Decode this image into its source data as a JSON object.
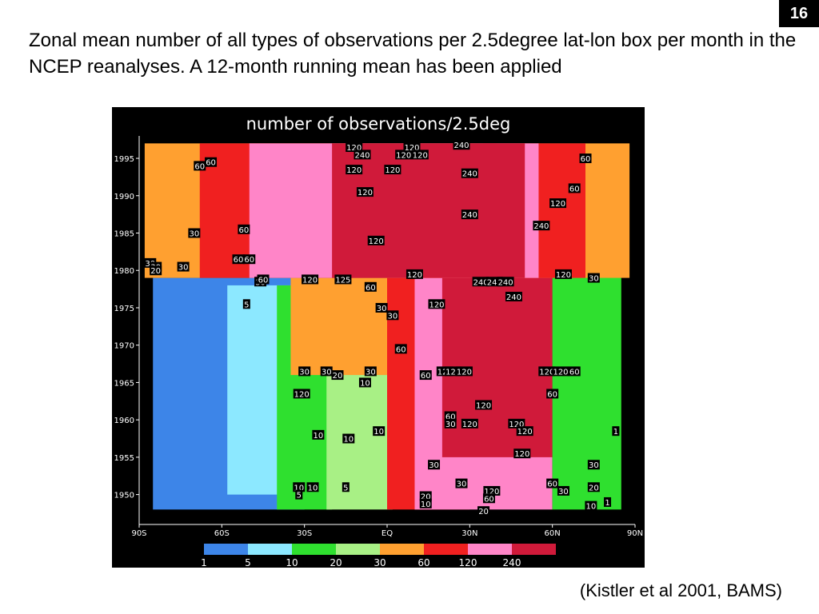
{
  "slide": {
    "number": "16",
    "title": "Zonal mean number of all types of observations per 2.5degree lat-lon box per month in the NCEP reanalyses. A 12-month running mean has been applied",
    "citation": "(Kistler et al 2001, BAMS)"
  },
  "chart_data": {
    "type": "heatmap",
    "title": "number of observations/2.5deg",
    "x_tick_labels": [
      "90S",
      "60S",
      "30S",
      "EQ",
      "30N",
      "60N",
      "90N"
    ],
    "x_tick_values": [
      -90,
      -60,
      -30,
      0,
      30,
      60,
      90
    ],
    "y_tick_labels": [
      "1950",
      "1955",
      "1960",
      "1965",
      "1970",
      "1975",
      "1980",
      "1985",
      "1990",
      "1995"
    ],
    "y_tick_values": [
      1950,
      1955,
      1960,
      1965,
      1970,
      1975,
      1980,
      1985,
      1990,
      1995
    ],
    "xlim": [
      -90,
      90
    ],
    "ylim": [
      1946,
      1998
    ],
    "colorbar": {
      "labels": [
        "1",
        "5",
        "10",
        "20",
        "30",
        "60",
        "120",
        "240"
      ],
      "levels": [
        1,
        5,
        10,
        20,
        30,
        60,
        120,
        240
      ],
      "colors": [
        "#3d85e8",
        "#8ce8ff",
        "#2fe02f",
        "#a8f085",
        "#ffa030",
        "#f02020",
        "#ff85c8",
        "#d01a3a"
      ]
    },
    "background_color": "#000000",
    "regions": [
      {
        "lat_min": -85,
        "lat_max": -30,
        "year_min": 1948,
        "year_max": 1979,
        "level": 1
      },
      {
        "lat_min": -58,
        "lat_max": -35,
        "year_min": 1950,
        "year_max": 1978,
        "level": 5
      },
      {
        "lat_min": -40,
        "lat_max": -20,
        "year_min": 1948,
        "year_max": 1978,
        "level": 10
      },
      {
        "lat_min": -22,
        "lat_max": 2,
        "year_min": 1948,
        "year_max": 1970,
        "level": 20
      },
      {
        "lat_min": -35,
        "lat_max": 10,
        "year_min": 1966,
        "year_max": 1979,
        "level": 30
      },
      {
        "lat_min": 0,
        "lat_max": 30,
        "year_min": 1948,
        "year_max": 1979,
        "level": 60
      },
      {
        "lat_min": 10,
        "lat_max": 60,
        "year_min": 1948,
        "year_max": 1979,
        "level": 120
      },
      {
        "lat_min": 20,
        "lat_max": 60,
        "year_min": 1955,
        "year_max": 1979,
        "level": 240
      },
      {
        "lat_min": 60,
        "lat_max": 85,
        "year_min": 1948,
        "year_max": 1980,
        "level": 10
      },
      {
        "lat_min": -88,
        "lat_max": 88,
        "year_min": 1979,
        "year_max": 1997,
        "level": 30
      },
      {
        "lat_min": -68,
        "lat_max": 72,
        "year_min": 1979,
        "year_max": 1997,
        "level": 60
      },
      {
        "lat_min": -50,
        "lat_max": 55,
        "year_min": 1979,
        "year_max": 1997,
        "level": 120
      },
      {
        "lat_min": -20,
        "lat_max": 40,
        "year_min": 1979,
        "year_max": 1997,
        "level": 240
      },
      {
        "lat_min": 35,
        "lat_max": 50,
        "year_min": 1979,
        "year_max": 1997,
        "level": 240
      }
    ],
    "contour_labels": [
      {
        "text": "120",
        "lat": -12,
        "year": 1996.5
      },
      {
        "text": "240",
        "lat": -9,
        "year": 1995.5
      },
      {
        "text": "120",
        "lat": -12,
        "year": 1993.5
      },
      {
        "text": "120",
        "lat": -8,
        "year": 1990.5
      },
      {
        "text": "120",
        "lat": 2,
        "year": 1993.5
      },
      {
        "text": "120",
        "lat": 6,
        "year": 1995.5
      },
      {
        "text": "120",
        "lat": 9,
        "year": 1996.5
      },
      {
        "text": "120",
        "lat": 12,
        "year": 1995.5
      },
      {
        "text": "240",
        "lat": 27,
        "year": 1996.8
      },
      {
        "text": "240",
        "lat": 30,
        "year": 1993
      },
      {
        "text": "240",
        "lat": 30,
        "year": 1987.5
      },
      {
        "text": "60",
        "lat": -68,
        "year": 1994
      },
      {
        "text": "60",
        "lat": -64,
        "year": 1994.5
      },
      {
        "text": "30",
        "lat": -70,
        "year": 1985
      },
      {
        "text": "60",
        "lat": -52,
        "year": 1985.5
      },
      {
        "text": "120",
        "lat": -4,
        "year": 1984
      },
      {
        "text": "120",
        "lat": 62,
        "year": 1989
      },
      {
        "text": "60",
        "lat": 68,
        "year": 1991
      },
      {
        "text": "240",
        "lat": 56,
        "year": 1986
      },
      {
        "text": "60",
        "lat": 72,
        "year": 1995
      },
      {
        "text": "30",
        "lat": -86,
        "year": 1981
      },
      {
        "text": "30",
        "lat": -84,
        "year": 1980.5
      },
      {
        "text": "20",
        "lat": -84,
        "year": 1980
      },
      {
        "text": "60",
        "lat": -54,
        "year": 1981.5
      },
      {
        "text": "60",
        "lat": -50,
        "year": 1981.5
      },
      {
        "text": "120",
        "lat": 10,
        "year": 1979.5
      },
      {
        "text": "120",
        "lat": 64,
        "year": 1979.5
      },
      {
        "text": "30",
        "lat": 75,
        "year": 1979
      },
      {
        "text": "30",
        "lat": -74,
        "year": 1980.5
      },
      {
        "text": "30",
        "lat": -46,
        "year": 1978.5
      },
      {
        "text": "60",
        "lat": -45,
        "year": 1978.8
      },
      {
        "text": "120",
        "lat": -28,
        "year": 1978.8
      },
      {
        "text": "125",
        "lat": -16,
        "year": 1978.8
      },
      {
        "text": "60",
        "lat": -6,
        "year": 1977.8
      },
      {
        "text": "240",
        "lat": 34,
        "year": 1978.5
      },
      {
        "text": "240",
        "lat": 39,
        "year": 1978.5
      },
      {
        "text": "240",
        "lat": 43,
        "year": 1978.5
      },
      {
        "text": "240",
        "lat": 46,
        "year": 1976.5
      },
      {
        "text": "120",
        "lat": 18,
        "year": 1975.5
      },
      {
        "text": "30",
        "lat": -2,
        "year": 1975
      },
      {
        "text": "30",
        "lat": 2,
        "year": 1974
      },
      {
        "text": "60",
        "lat": 5,
        "year": 1969.5
      },
      {
        "text": "5",
        "lat": -51,
        "year": 1975.5
      },
      {
        "text": "120",
        "lat": 21,
        "year": 1966.5
      },
      {
        "text": "120",
        "lat": 24,
        "year": 1966.5
      },
      {
        "text": "120",
        "lat": 28,
        "year": 1966.5
      },
      {
        "text": "120",
        "lat": 58,
        "year": 1966.5
      },
      {
        "text": "120",
        "lat": 63,
        "year": 1966.5
      },
      {
        "text": "60",
        "lat": 68,
        "year": 1966.5
      },
      {
        "text": "30",
        "lat": -30,
        "year": 1966.5
      },
      {
        "text": "30",
        "lat": -22,
        "year": 1966.5
      },
      {
        "text": "20",
        "lat": -18,
        "year": 1966
      },
      {
        "text": "30",
        "lat": -6,
        "year": 1966.5
      },
      {
        "text": "10",
        "lat": -8,
        "year": 1965
      },
      {
        "text": "60",
        "lat": 14,
        "year": 1966
      },
      {
        "text": "60",
        "lat": 60,
        "year": 1963.5
      },
      {
        "text": "120",
        "lat": -31,
        "year": 1963.5
      },
      {
        "text": "120",
        "lat": 35,
        "year": 1962
      },
      {
        "text": "60",
        "lat": 23,
        "year": 1960.5
      },
      {
        "text": "30",
        "lat": 23,
        "year": 1959.5
      },
      {
        "text": "120",
        "lat": 30,
        "year": 1959.5
      },
      {
        "text": "120",
        "lat": 47,
        "year": 1959.5
      },
      {
        "text": "120",
        "lat": 50,
        "year": 1958.5
      },
      {
        "text": "120",
        "lat": 49,
        "year": 1955.5
      },
      {
        "text": "10",
        "lat": -25,
        "year": 1958
      },
      {
        "text": "10",
        "lat": -14,
        "year": 1957.5
      },
      {
        "text": "10",
        "lat": -3,
        "year": 1958.5
      },
      {
        "text": "1",
        "lat": 83,
        "year": 1958.5
      },
      {
        "text": "30",
        "lat": 17,
        "year": 1954
      },
      {
        "text": "30",
        "lat": 27,
        "year": 1951.5
      },
      {
        "text": "120",
        "lat": 38,
        "year": 1950.5
      },
      {
        "text": "60",
        "lat": 60,
        "year": 1951.5
      },
      {
        "text": "60",
        "lat": 37,
        "year": 1949.5
      },
      {
        "text": "30",
        "lat": 64,
        "year": 1950.5
      },
      {
        "text": "30",
        "lat": 75,
        "year": 1954
      },
      {
        "text": "20",
        "lat": 75,
        "year": 1951
      },
      {
        "text": "10",
        "lat": -32,
        "year": 1951
      },
      {
        "text": "10",
        "lat": -27,
        "year": 1951
      },
      {
        "text": "5",
        "lat": -32,
        "year": 1950
      },
      {
        "text": "5",
        "lat": -15,
        "year": 1951
      },
      {
        "text": "20",
        "lat": 14,
        "year": 1949.8
      },
      {
        "text": "10",
        "lat": 14,
        "year": 1948.8
      },
      {
        "text": "20",
        "lat": 35,
        "year": 1947.8
      },
      {
        "text": "10",
        "lat": 74,
        "year": 1948.5
      },
      {
        "text": "1",
        "lat": 80,
        "year": 1949
      }
    ]
  }
}
